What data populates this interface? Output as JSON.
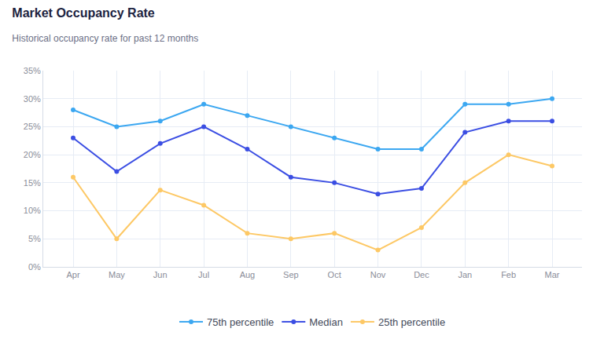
{
  "chart_data": {
    "type": "line",
    "title": "Market Occupancy Rate",
    "subtitle": "Historical occupancy rate for past 12 months",
    "categories": [
      "Apr",
      "May",
      "Jun",
      "Jul",
      "Aug",
      "Sep",
      "Oct",
      "Nov",
      "Dec",
      "Jan",
      "Feb",
      "Mar"
    ],
    "series": [
      {
        "name": "75th percentile",
        "color": "#3ba7f1",
        "values": [
          28,
          25,
          26,
          29,
          27,
          25,
          23,
          21,
          21,
          29,
          29,
          30
        ]
      },
      {
        "name": "Median",
        "color": "#3b4ee3",
        "values": [
          23,
          17,
          22,
          25,
          21,
          16,
          15,
          13,
          14,
          24,
          26,
          26
        ]
      },
      {
        "name": "25th percentile",
        "color": "#fdc865",
        "values": [
          16,
          5,
          13.7,
          11,
          6,
          5,
          6,
          3,
          7,
          15,
          20,
          18
        ]
      }
    ],
    "ylim": [
      0,
      35
    ],
    "yticks": [
      {
        "value": 0,
        "label": "0%"
      },
      {
        "value": 5,
        "label": "5%"
      },
      {
        "value": 10,
        "label": "10%"
      },
      {
        "value": 15,
        "label": "15%"
      },
      {
        "value": 20,
        "label": "20%"
      },
      {
        "value": 25,
        "label": "25%"
      },
      {
        "value": 30,
        "label": "30%"
      },
      {
        "value": 35,
        "label": "35%"
      }
    ],
    "grid": true,
    "legend": "bottom",
    "marker": "circle",
    "line_style": "solid"
  }
}
